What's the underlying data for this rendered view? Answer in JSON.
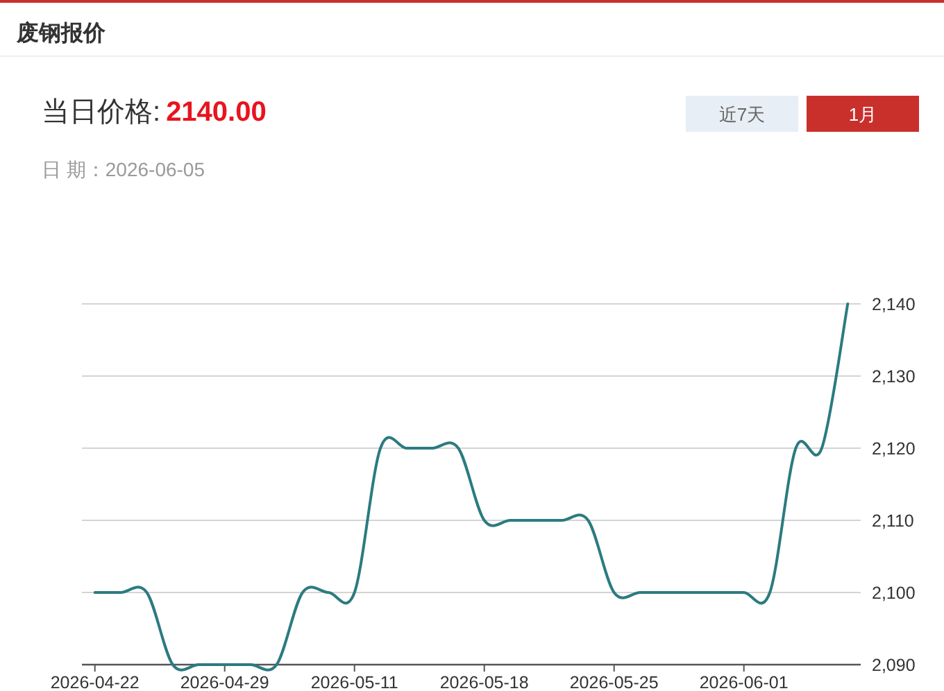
{
  "chart_data": {
    "type": "line",
    "title": "废钢报价",
    "subtitle": "当日价格:",
    "annotations": [
      "2140.00",
      "日 期：2026-06-05",
      "近7天",
      "1月"
    ],
    "categories": [
      "2026-04-22",
      null,
      null,
      null,
      null,
      "2026-04-29",
      null,
      null,
      null,
      null,
      "2026-05-11",
      null,
      null,
      null,
      null,
      "2026-05-18",
      null,
      null,
      null,
      null,
      "2026-05-25",
      null,
      null,
      null,
      null,
      "2026-06-01",
      null,
      null,
      null,
      null
    ],
    "values": [
      2100,
      2100,
      2100,
      2090,
      2090,
      2090,
      2090,
      2090,
      2100,
      2100,
      2100,
      2120,
      2120,
      2120,
      2120,
      2110,
      2110,
      2110,
      2110,
      2110,
      2100,
      2100,
      2100,
      2100,
      2100,
      2100,
      2100,
      2120,
      2120,
      2140
    ],
    "color": "#2b7b80",
    "line_style": "solid",
    "ylim": [
      2090,
      2140
    ],
    "yticks": [
      {
        "value": 2090,
        "label": "2,090"
      },
      {
        "value": 2100,
        "label": "2,100"
      },
      {
        "value": 2110,
        "label": "2,110"
      },
      {
        "value": 2120,
        "label": "2,120"
      },
      {
        "value": 2130,
        "label": "2,130"
      },
      {
        "value": 2140,
        "label": "2,140"
      }
    ],
    "grid": "y"
  }
}
